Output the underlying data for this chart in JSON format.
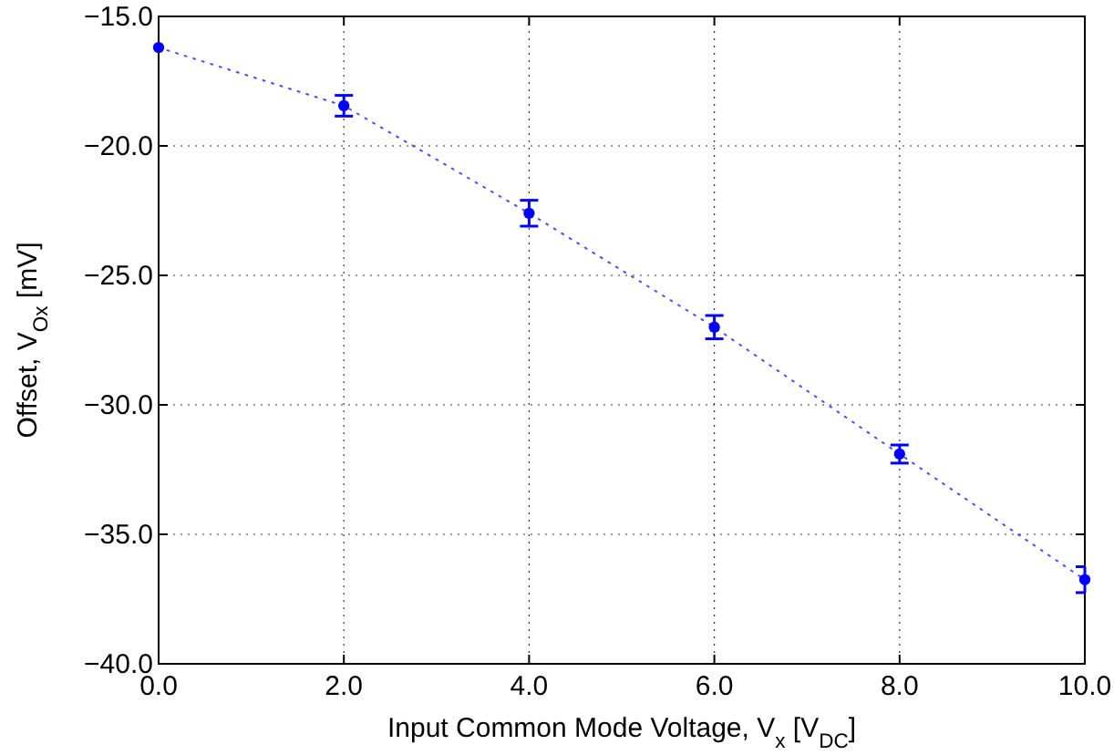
{
  "chart_data": {
    "type": "line",
    "xlabel": "Input Common Mode Voltage, V$_{x}$ [V$_{DC}$]",
    "ylabel": "Offset, V$_{Ox}$ [mV]",
    "x": [
      0,
      2,
      4,
      6,
      8,
      10
    ],
    "series": [
      {
        "color": "#0000ff",
        "values": [
          -16.2,
          -18.45,
          -22.6,
          -27.0,
          -31.9,
          -36.75
        ],
        "errors": [
          null,
          0.4,
          0.5,
          0.45,
          0.35,
          0.5
        ]
      }
    ],
    "xlim": [
      0,
      10
    ],
    "ylim": [
      -40,
      -15
    ],
    "xticks": [
      {
        "value": 0,
        "label": "0.0"
      },
      {
        "value": 2,
        "label": "2.0"
      },
      {
        "value": 4,
        "label": "4.0"
      },
      {
        "value": 6,
        "label": "6.0"
      },
      {
        "value": 8,
        "label": "8.0"
      },
      {
        "value": 10,
        "label": "10.0"
      }
    ],
    "yticks": [
      {
        "value": -40,
        "label": "−40.0"
      },
      {
        "value": -35,
        "label": "−35.0"
      },
      {
        "value": -30,
        "label": "−30.0"
      },
      {
        "value": -25,
        "label": "−25.0"
      },
      {
        "value": -20,
        "label": "−20.0"
      },
      {
        "value": -15,
        "label": "−15.0"
      }
    ],
    "grid": true,
    "marker": "circle",
    "line_style": "dotted"
  }
}
